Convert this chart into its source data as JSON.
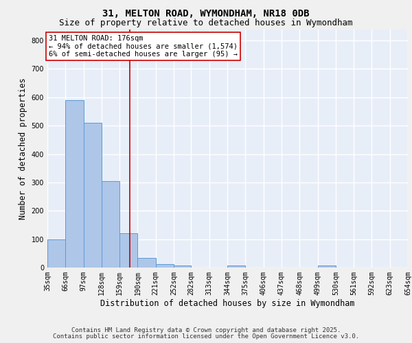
{
  "title_line1": "31, MELTON ROAD, WYMONDHAM, NR18 0DB",
  "title_line2": "Size of property relative to detached houses in Wymondham",
  "xlabel": "Distribution of detached houses by size in Wymondham",
  "ylabel": "Number of detached properties",
  "bin_edges": [
    35,
    66,
    97,
    128,
    159,
    190,
    221,
    252,
    282,
    313,
    344,
    375,
    406,
    437,
    468,
    499,
    530,
    561,
    592,
    623,
    654
  ],
  "bar_heights": [
    100,
    590,
    510,
    305,
    120,
    35,
    13,
    8,
    0,
    0,
    8,
    0,
    0,
    0,
    0,
    8,
    0,
    0,
    0,
    0
  ],
  "bar_color": "#aec6e8",
  "bar_edge_color": "#5b9bd5",
  "background_color": "#e8eef8",
  "grid_color": "#ffffff",
  "vline_x": 176,
  "vline_color": "#cc0000",
  "annotation_text": "31 MELTON ROAD: 176sqm\n← 94% of detached houses are smaller (1,574)\n6% of semi-detached houses are larger (95) →",
  "annotation_box_color": "#ffffff",
  "annotation_border_color": "#cc0000",
  "ylim": [
    0,
    840
  ],
  "yticks": [
    0,
    100,
    200,
    300,
    400,
    500,
    600,
    700,
    800
  ],
  "footer_line1": "Contains HM Land Registry data © Crown copyright and database right 2025.",
  "footer_line2": "Contains public sector information licensed under the Open Government Licence v3.0.",
  "title_fontsize": 10,
  "subtitle_fontsize": 9,
  "axis_label_fontsize": 8.5,
  "tick_fontsize": 7,
  "annotation_fontsize": 7.5,
  "footer_fontsize": 6.5,
  "fig_bg": "#f0f0f0"
}
